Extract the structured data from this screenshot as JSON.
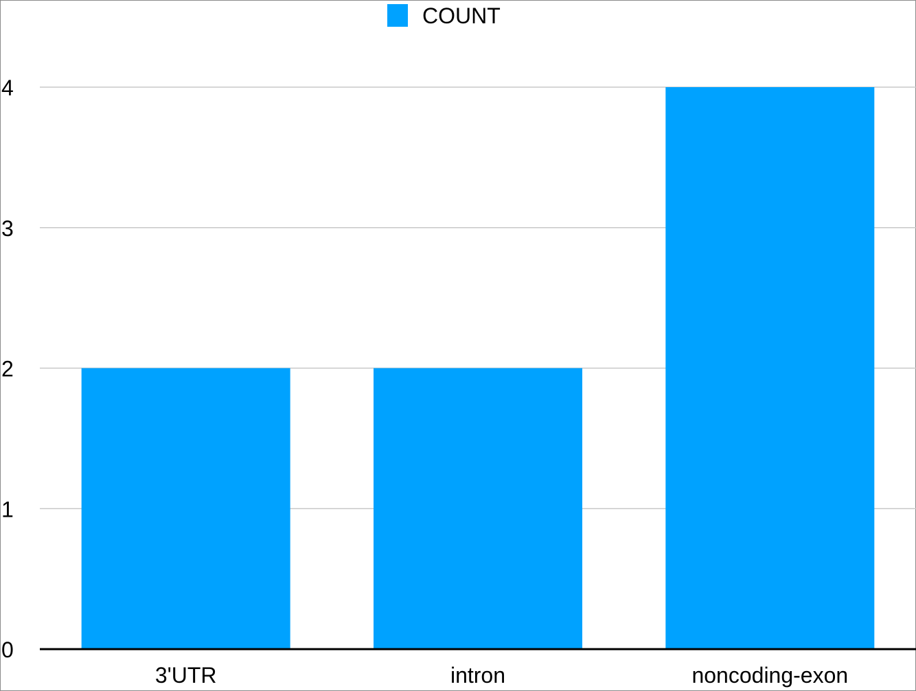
{
  "chart_data": {
    "type": "bar",
    "categories": [
      "3'UTR",
      "intron",
      "noncoding-exon"
    ],
    "series": [
      {
        "name": "COUNT",
        "values": [
          2,
          2,
          4
        ]
      }
    ],
    "title": "",
    "xlabel": "",
    "ylabel": "",
    "ylim": [
      0,
      4
    ],
    "yticks": [
      "0",
      "1",
      "2",
      "3",
      "4"
    ],
    "grid": true,
    "legend_position": "top-center",
    "colors": {
      "bar": "#00a2ff",
      "grid": "#c8c8c8",
      "axis": "#000000"
    }
  }
}
